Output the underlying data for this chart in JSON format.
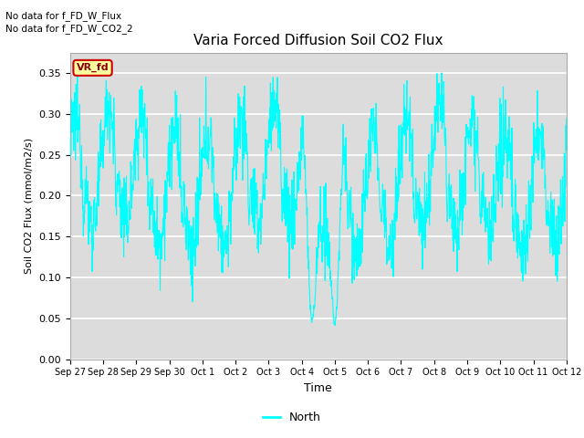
{
  "title": "Varia Forced Diffusion Soil CO2 Flux",
  "xlabel": "Time",
  "ylabel": "Soil CO2 Flux (mmol/m2/s)",
  "ylim": [
    0.0,
    0.375
  ],
  "yticks": [
    0.0,
    0.05,
    0.1,
    0.15,
    0.2,
    0.25,
    0.3,
    0.35
  ],
  "xtick_labels": [
    "Sep 27",
    "Sep 28",
    "Sep 29",
    "Sep 30",
    "Oct 1",
    "Oct 2",
    "Oct 3",
    "Oct 4",
    "Oct 5",
    "Oct 6",
    "Oct 7",
    "Oct 8",
    "Oct 9",
    "Oct 10",
    "Oct 11",
    "Oct 12"
  ],
  "line_color": "#00FFFF",
  "bg_color": "#DCDCDC",
  "fig_bg_color": "#FFFFFF",
  "no_data_text1": "No data for f_FD_W_Flux",
  "no_data_text2": "No data for f_FD_W_CO2_2",
  "legend_label": "North",
  "annotation_text": "VR_fd",
  "annotation_bg": "#FFFFA0",
  "annotation_border": "#CC0000",
  "seed": 12345,
  "n_points": 1500
}
